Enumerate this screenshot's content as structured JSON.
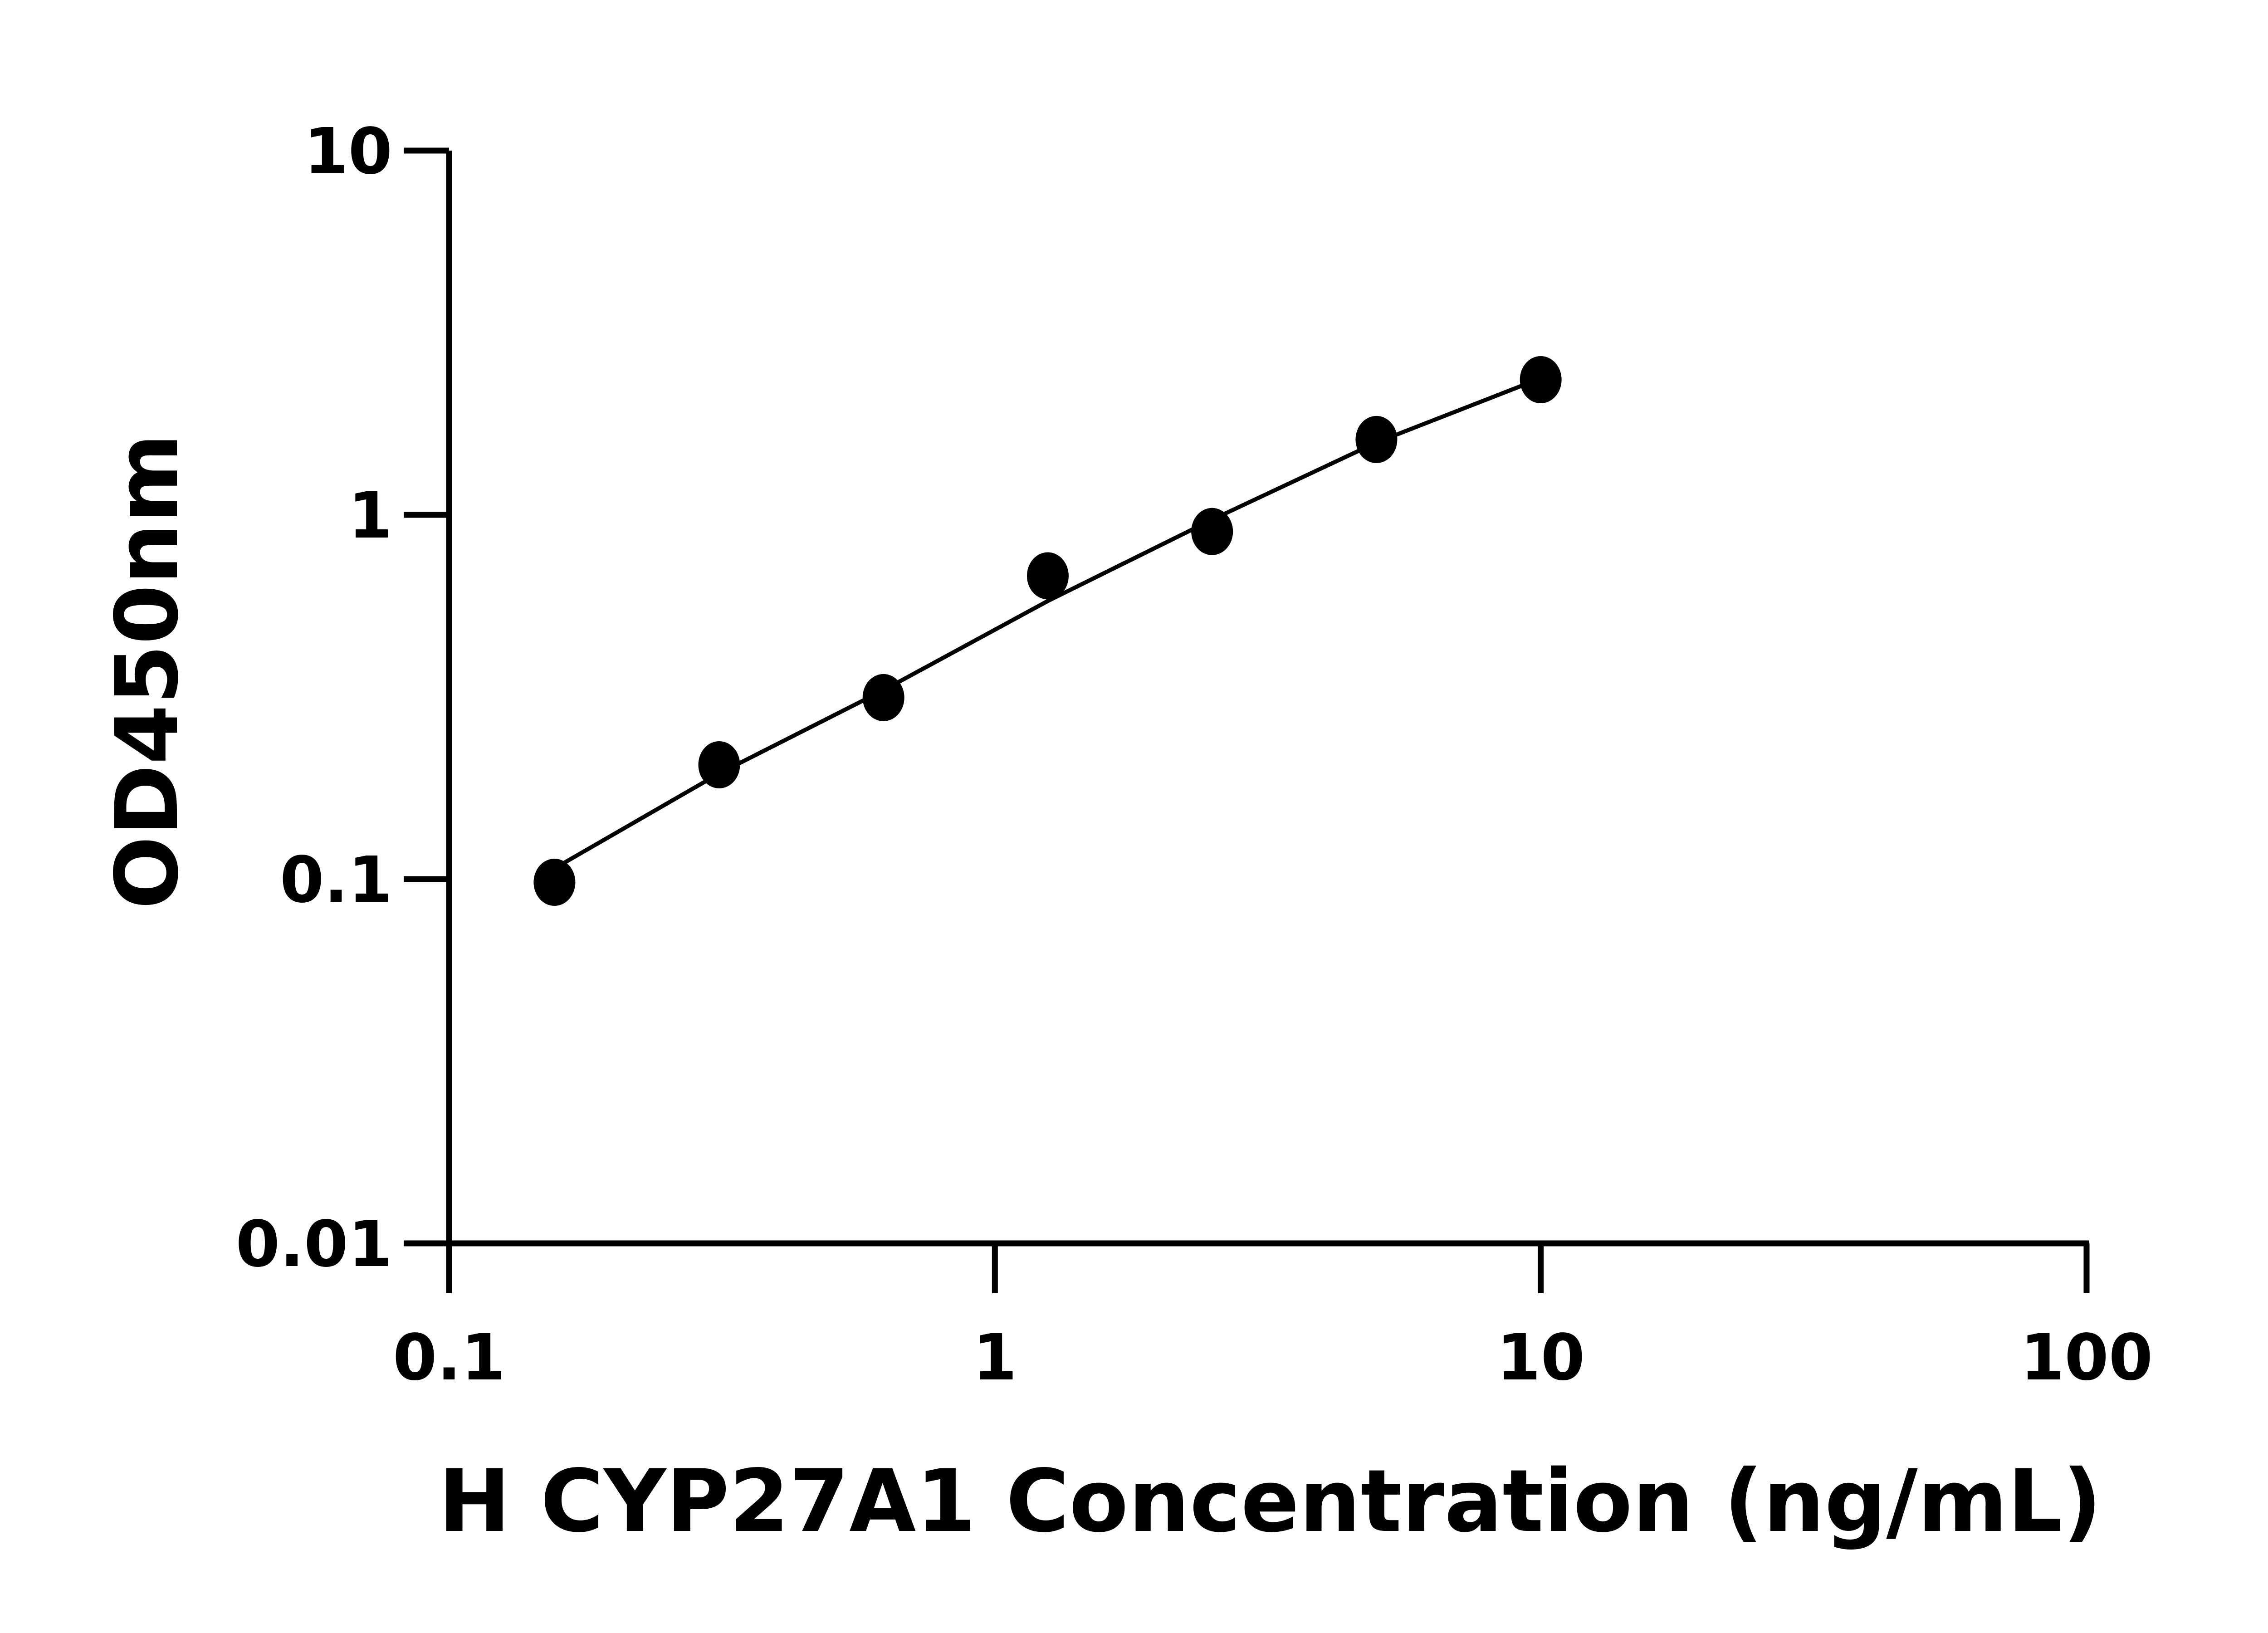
{
  "chart_data": {
    "type": "scatter",
    "title": "",
    "xlabel": "H CYP27A1 Concentration (ng/mL)",
    "ylabel": "OD450nm",
    "x_scale": "log",
    "y_scale": "log",
    "xlim": [
      0.1,
      100
    ],
    "ylim": [
      0.01,
      10
    ],
    "x_ticks": [
      "0.1",
      "1",
      "10",
      "100"
    ],
    "y_ticks": [
      "0.01",
      "0.1",
      "1",
      "10"
    ],
    "grid": false,
    "color": "#000000",
    "series": [
      {
        "points": [
          {
            "x": 0.156,
            "y": 0.098
          },
          {
            "x": 0.3125,
            "y": 0.206
          },
          {
            "x": 0.625,
            "y": 0.315
          },
          {
            "x": 1.25,
            "y": 0.68
          },
          {
            "x": 2.5,
            "y": 0.9
          },
          {
            "x": 5,
            "y": 1.61
          },
          {
            "x": 10,
            "y": 2.35
          }
        ],
        "fit_curve": [
          {
            "x": 0.156,
            "y": 0.107
          },
          {
            "x": 0.3125,
            "y": 0.195
          },
          {
            "x": 0.625,
            "y": 0.33
          },
          {
            "x": 1.25,
            "y": 0.58
          },
          {
            "x": 2.5,
            "y": 0.97
          },
          {
            "x": 5,
            "y": 1.58
          },
          {
            "x": 9.5,
            "y": 2.3
          }
        ]
      }
    ]
  }
}
